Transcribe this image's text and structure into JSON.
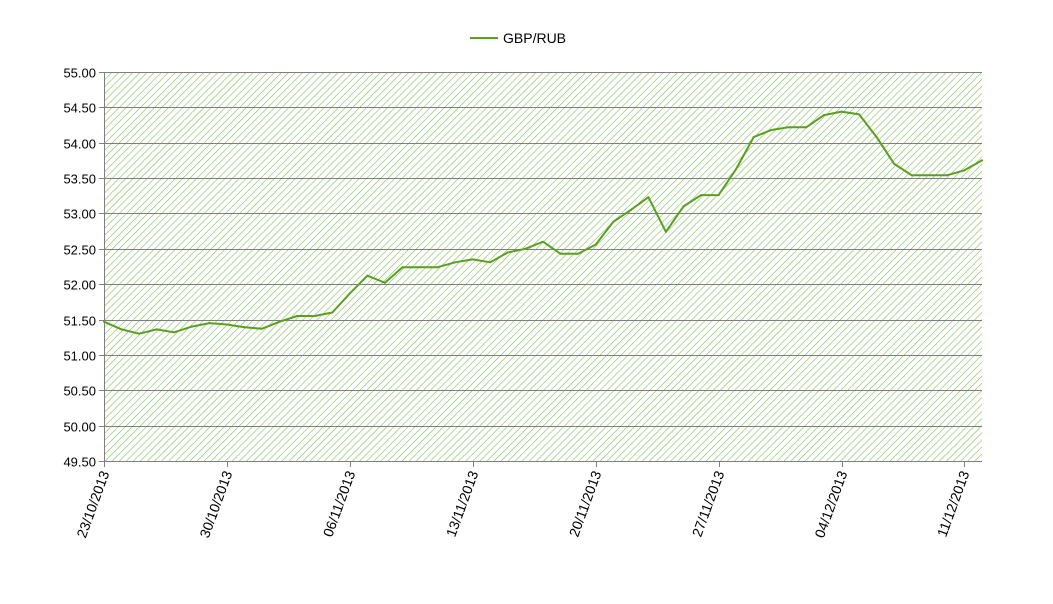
{
  "chart_data": {
    "type": "line",
    "title": "",
    "xlabel": "",
    "ylabel": "",
    "legend_position": "top-center",
    "grid": true,
    "plot_fill": "diagonal-hatch-green",
    "ylim": [
      49.5,
      55.0
    ],
    "y_ticks": [
      "49.50",
      "50.00",
      "50.50",
      "51.00",
      "51.50",
      "52.00",
      "52.50",
      "53.00",
      "53.50",
      "54.00",
      "54.50",
      "55.00"
    ],
    "x_range": [
      "2013-10-23",
      "2013-12-12"
    ],
    "x_ticks": [
      "23/10/2013",
      "30/10/2013",
      "06/11/2013",
      "13/11/2013",
      "20/11/2013",
      "27/11/2013",
      "04/12/2013",
      "11/12/2013"
    ],
    "series": [
      {
        "name": "GBP/RUB",
        "color": "#5c9e1f",
        "x": [
          "2013-10-23",
          "2013-10-24",
          "2013-10-25",
          "2013-10-26",
          "2013-10-27",
          "2013-10-28",
          "2013-10-29",
          "2013-10-30",
          "2013-10-31",
          "2013-11-01",
          "2013-11-02",
          "2013-11-03",
          "2013-11-04",
          "2013-11-05",
          "2013-11-06",
          "2013-11-07",
          "2013-11-08",
          "2013-11-09",
          "2013-11-10",
          "2013-11-11",
          "2013-11-12",
          "2013-11-13",
          "2013-11-14",
          "2013-11-15",
          "2013-11-16",
          "2013-11-17",
          "2013-11-18",
          "2013-11-19",
          "2013-11-20",
          "2013-11-21",
          "2013-11-22",
          "2013-11-23",
          "2013-11-24",
          "2013-11-25",
          "2013-11-26",
          "2013-11-27",
          "2013-11-28",
          "2013-11-29",
          "2013-11-30",
          "2013-12-01",
          "2013-12-02",
          "2013-12-03",
          "2013-12-04",
          "2013-12-05",
          "2013-12-06",
          "2013-12-07",
          "2013-12-08",
          "2013-12-09",
          "2013-12-10",
          "2013-12-11",
          "2013-12-12"
        ],
        "values": [
          51.47,
          51.36,
          51.3,
          51.36,
          51.32,
          51.4,
          51.45,
          51.43,
          51.39,
          51.37,
          51.47,
          51.55,
          51.55,
          51.6,
          51.87,
          52.12,
          52.02,
          52.24,
          52.24,
          52.24,
          52.31,
          52.35,
          52.31,
          52.45,
          52.5,
          52.6,
          52.43,
          52.43,
          52.56,
          52.88,
          53.05,
          53.23,
          52.74,
          53.1,
          53.26,
          53.26,
          53.63,
          54.08,
          54.18,
          54.22,
          54.22,
          54.39,
          54.44,
          54.4,
          54.08,
          53.7,
          53.54,
          53.54,
          53.54,
          53.61,
          53.75
        ]
      }
    ]
  }
}
